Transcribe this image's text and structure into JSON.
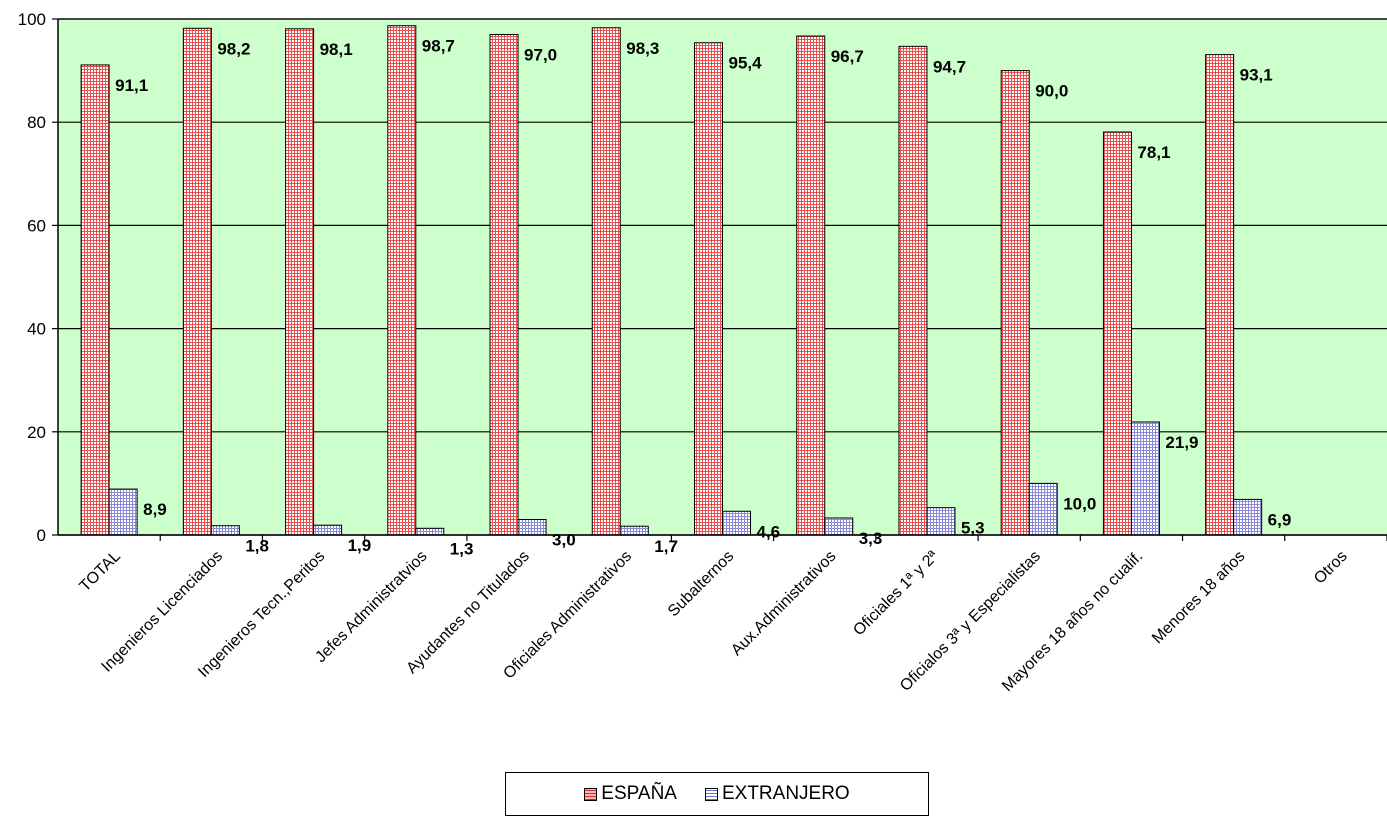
{
  "chart_data": {
    "type": "bar",
    "categories": [
      "TOTAL",
      "Ingenieros Licenciados",
      "Ingenieros Tecn.,Peritos",
      "Jefes Administratvios",
      "Ayudantes no Titulados",
      "Oficiales Administrativos",
      "Subalternos",
      "Aux.Administrativos",
      "Oficiales 1ª y 2ª",
      "Oficialos 3ª y Especialistas",
      "Mayores 18 años no cualif.",
      "Menores 18 años",
      "Otros"
    ],
    "series": [
      {
        "name": "ESPAÑA",
        "values": [
          91.1,
          98.2,
          98.1,
          98.7,
          97.0,
          98.3,
          95.4,
          96.7,
          94.7,
          90.0,
          78.1,
          93.1,
          null
        ],
        "labels": [
          "91,1",
          "98,2",
          "98,1",
          "98,7",
          "97,0",
          "98,3",
          "95,4",
          "96,7",
          "94,7",
          "90,0",
          "78,1",
          "93,1",
          ""
        ],
        "color": "#f4b6b6",
        "line_color": "#e04040",
        "pattern": "grid"
      },
      {
        "name": "EXTRANJERO",
        "values": [
          8.9,
          1.8,
          1.9,
          1.3,
          3.0,
          1.7,
          4.6,
          3.3,
          5.3,
          10.0,
          21.9,
          6.9,
          null
        ],
        "labels": [
          "8,9",
          "1,8",
          "1,9",
          "1,3",
          "3,0",
          "1,7",
          "4,6",
          "3,3",
          "5,3",
          "10,0",
          "21,9",
          "6,9",
          ""
        ],
        "color": "#d4d4f4",
        "line_color": "#7070c8",
        "pattern": "grid"
      }
    ],
    "ylim": [
      0,
      100
    ],
    "yticks": [
      "0",
      "20",
      "40",
      "60",
      "80",
      "100"
    ],
    "plot_background": "#ccffcc",
    "gridlines": true,
    "legend_position": "bottom"
  }
}
